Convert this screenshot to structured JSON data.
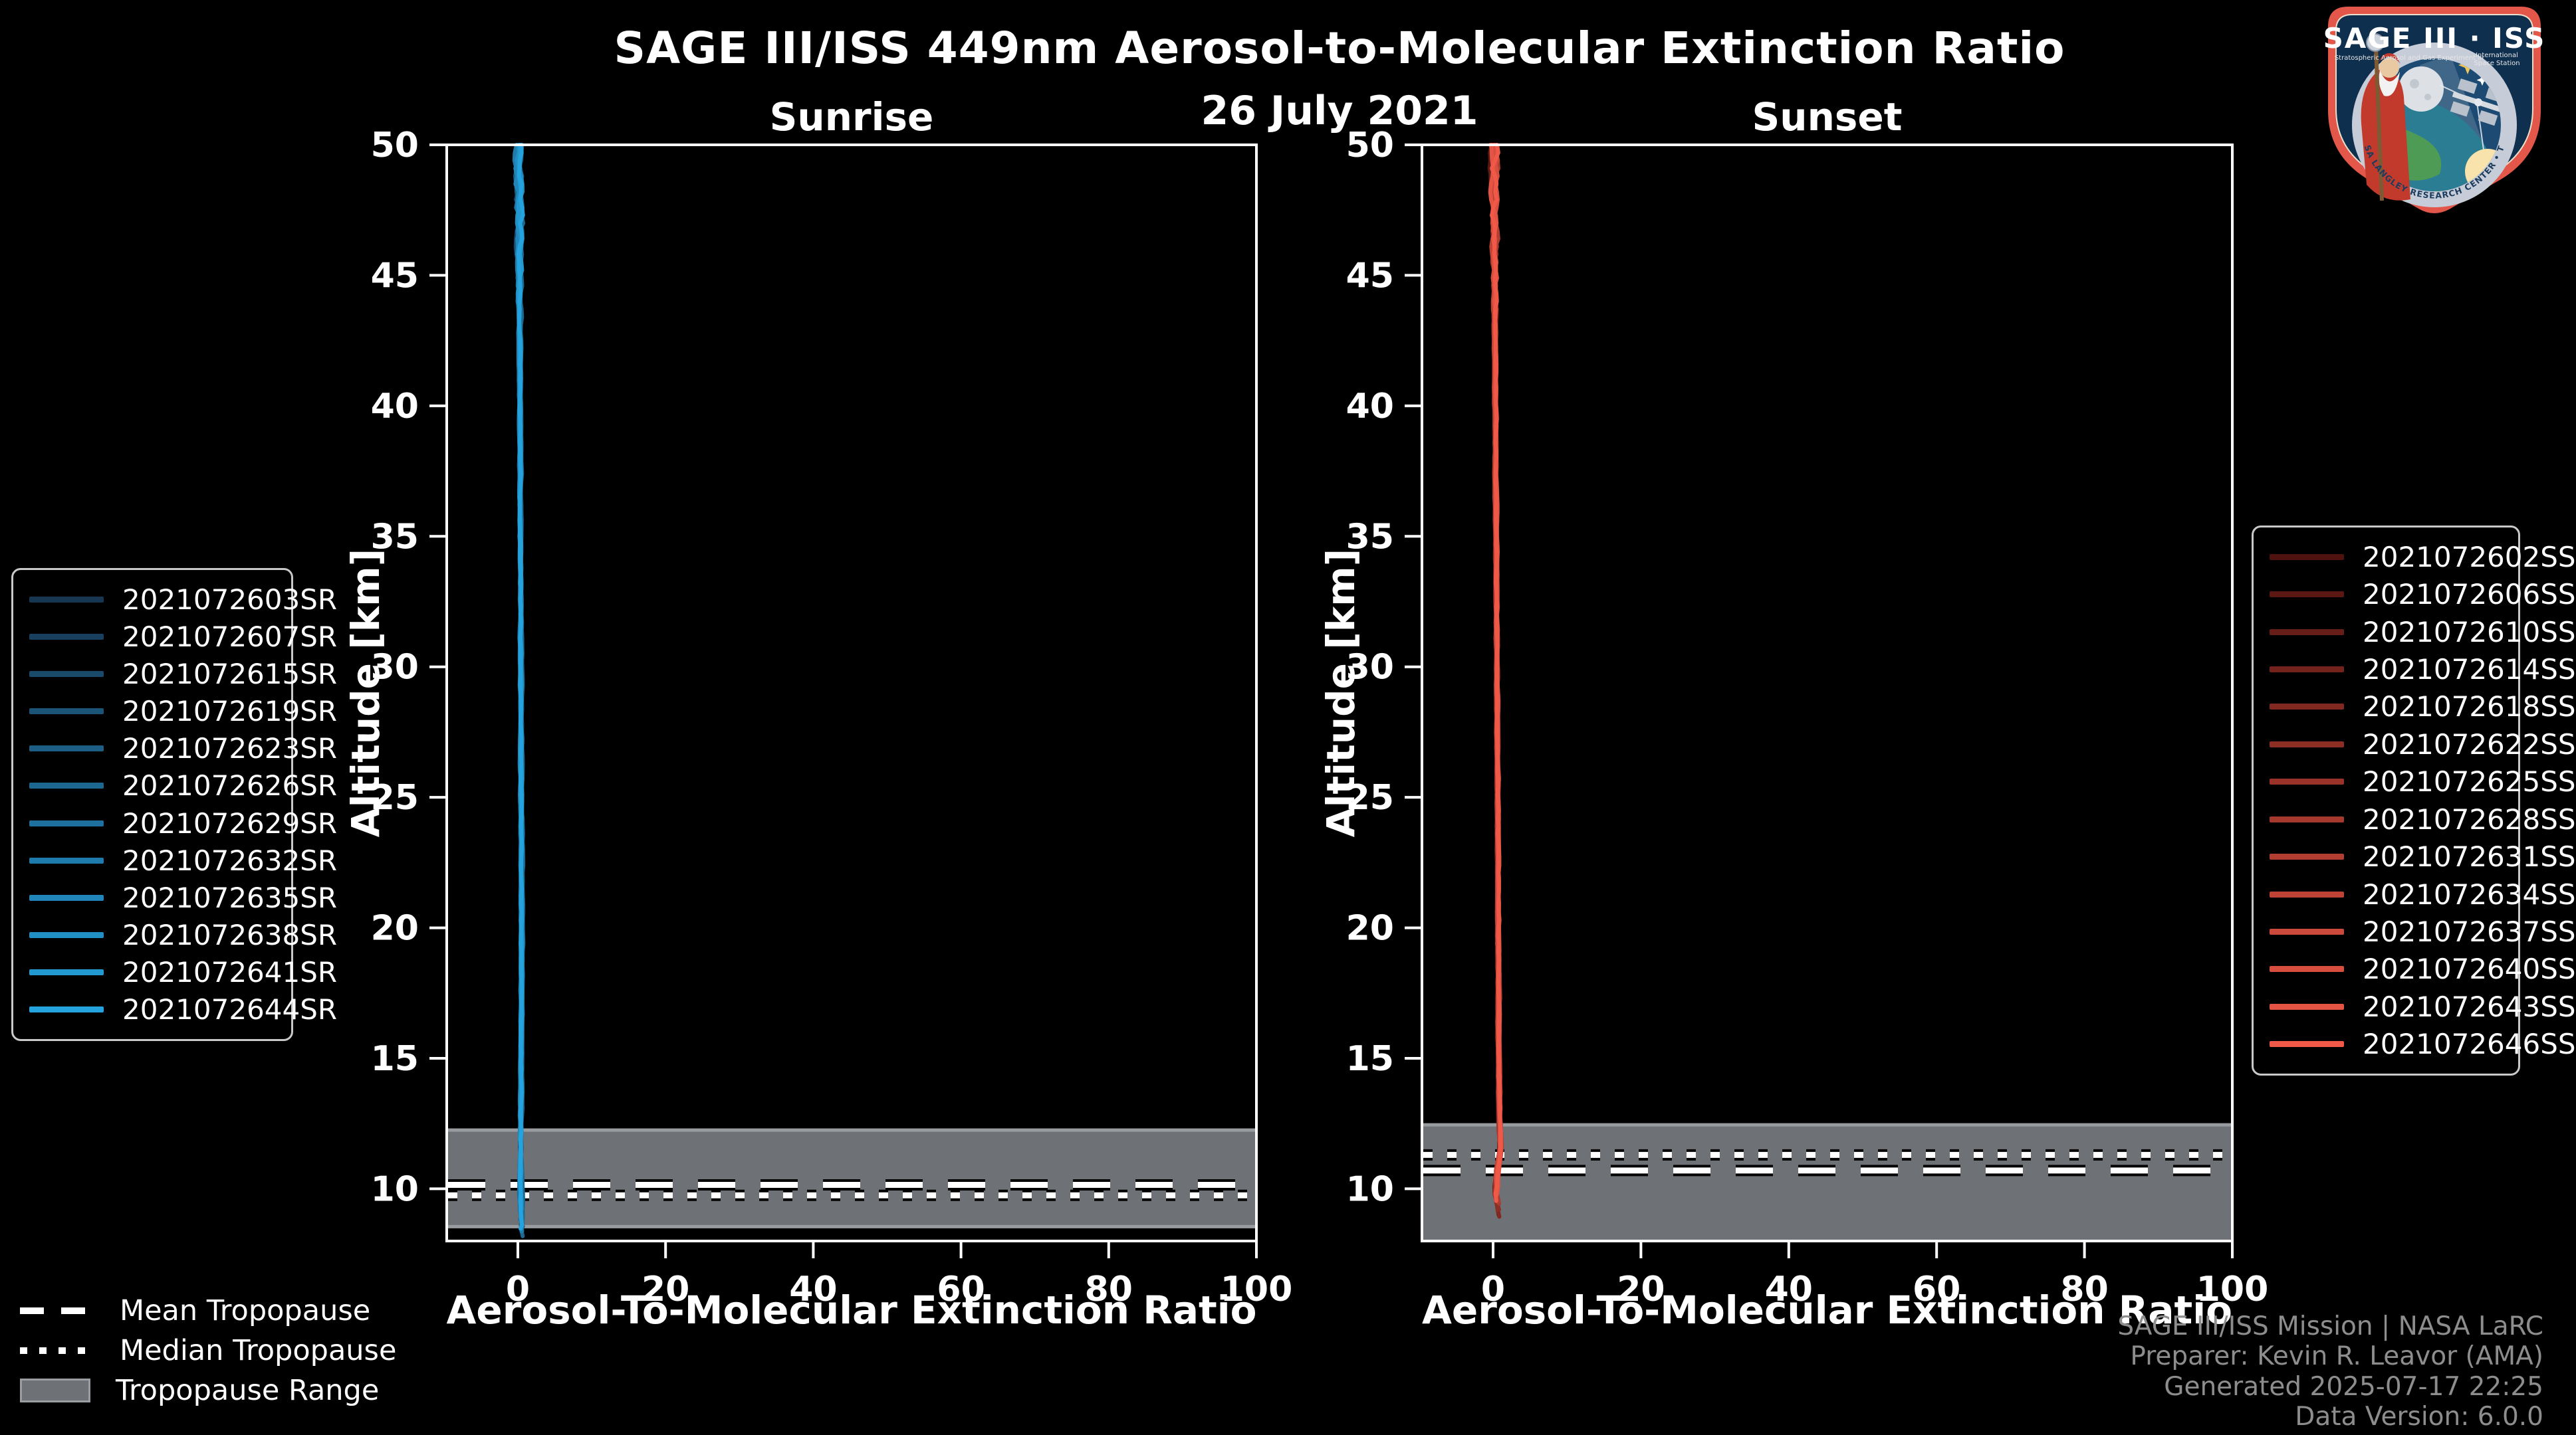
{
  "header": {
    "title": "SAGE III/ISS 449nm Aerosol-to-Molecular Extinction Ratio",
    "date": "26 July 2021"
  },
  "chart_data": {
    "type": "line",
    "suptitle": "SAGE III/ISS 449nm Aerosol-to-Molecular Extinction Ratio",
    "subtitle": "26 July 2021",
    "panels": [
      {
        "id": "sunrise",
        "title": "Sunrise",
        "xlabel": "Aerosol-To-Molecular Extinction Ratio",
        "ylabel": "Altitude [km]",
        "xlim": [
          -9.6,
          100
        ],
        "ylim": [
          8,
          50
        ],
        "xticks": [
          0,
          20,
          40,
          60,
          80,
          100
        ],
        "yticks": [
          10,
          15,
          20,
          25,
          30,
          35,
          40,
          45,
          50
        ],
        "legend": [
          "2021072603SR",
          "2021072607SR",
          "2021072615SR",
          "2021072619SR",
          "2021072623SR",
          "2021072626SR",
          "2021072629SR",
          "2021072632SR",
          "2021072635SR",
          "2021072638SR",
          "2021072641SR",
          "2021072644SR"
        ],
        "color_ramp": {
          "start": "#173651",
          "end": "#24a3de"
        },
        "tropopause": {
          "mean_km": 10.15,
          "median_km": 9.75,
          "range_km": [
            8.55,
            12.25
          ]
        },
        "profile_alt_ratio": [
          [
            50,
            0.2
          ],
          [
            46,
            0.25
          ],
          [
            43,
            0.3
          ],
          [
            38,
            0.35
          ],
          [
            33,
            0.4
          ],
          [
            28,
            0.45
          ],
          [
            24,
            0.5
          ],
          [
            20,
            0.55
          ],
          [
            16,
            0.5
          ],
          [
            13,
            0.45
          ],
          [
            11,
            0.4
          ],
          [
            9.5,
            0.45
          ],
          [
            8.1,
            0.5
          ]
        ],
        "min_alt_km": 8.1,
        "noise": {
          "base": 0.16,
          "top": 1.0,
          "bottom": 0.4
        }
      },
      {
        "id": "sunset",
        "title": "Sunset",
        "xlabel": "Aerosol-To-Molecular Extinction Ratio",
        "ylabel": "Altitude [km]",
        "xlim": [
          -9.6,
          100
        ],
        "ylim": [
          8,
          50
        ],
        "xticks": [
          0,
          20,
          40,
          60,
          80,
          100
        ],
        "yticks": [
          10,
          15,
          20,
          25,
          30,
          35,
          40,
          45,
          50
        ],
        "legend": [
          "2021072602SS",
          "2021072606SS",
          "2021072610SS",
          "2021072614SS",
          "2021072618SS",
          "2021072622SS",
          "2021072625SS",
          "2021072628SS",
          "2021072631SS",
          "2021072634SS",
          "2021072637SS",
          "2021072640SS",
          "2021072643SS",
          "2021072646SS"
        ],
        "color_ramp": {
          "start": "#4f130f",
          "end": "#f05948"
        },
        "tropopause": {
          "mean_km": 10.7,
          "median_km": 11.3,
          "range_km": [
            8.0,
            12.45
          ]
        },
        "profile_alt_ratio": [
          [
            50,
            0.1
          ],
          [
            45,
            0.2
          ],
          [
            40,
            0.3
          ],
          [
            35,
            0.4
          ],
          [
            30,
            0.5
          ],
          [
            25,
            0.6
          ],
          [
            20,
            0.7
          ],
          [
            16,
            0.75
          ],
          [
            13,
            0.85
          ],
          [
            11.5,
            1.0
          ],
          [
            10.6,
            0.55
          ],
          [
            9.8,
            0.35
          ],
          [
            9.3,
            0.7
          ],
          [
            8.9,
            0.9
          ]
        ],
        "min_alt_km": 8.9,
        "noise": {
          "base": 0.16,
          "top": 1.0,
          "bottom": 0.55
        }
      }
    ],
    "style": {
      "band_color": "#6e7175",
      "band_edge_color": "#989ca1",
      "axis_color": "#ffffff",
      "tick_label_color": "#ffffff"
    }
  },
  "tropopause_legend": {
    "mean_label": "Mean Tropopause",
    "median_label": "Median Tropopause",
    "range_label": "Tropopause Range"
  },
  "footer": {
    "line1": "SAGE III/ISS Mission | NASA LaRC",
    "line2": "Preparer: Kevin R. Leavor (AMA)",
    "line3": "Generated 2025-07-17 22:25",
    "line4": "Data Version: 6.0.0"
  },
  "logo": {
    "mission": "SAGE III · ISS",
    "subtitle_left": "Stratospheric Aerosol and Gas Experiment III",
    "subtitle_right_1": "International",
    "subtitle_right_2": "Space Station",
    "ring_text": "BALL • NASA LANGLEY RESEARCH CENTER • TAS-I • ESA"
  }
}
